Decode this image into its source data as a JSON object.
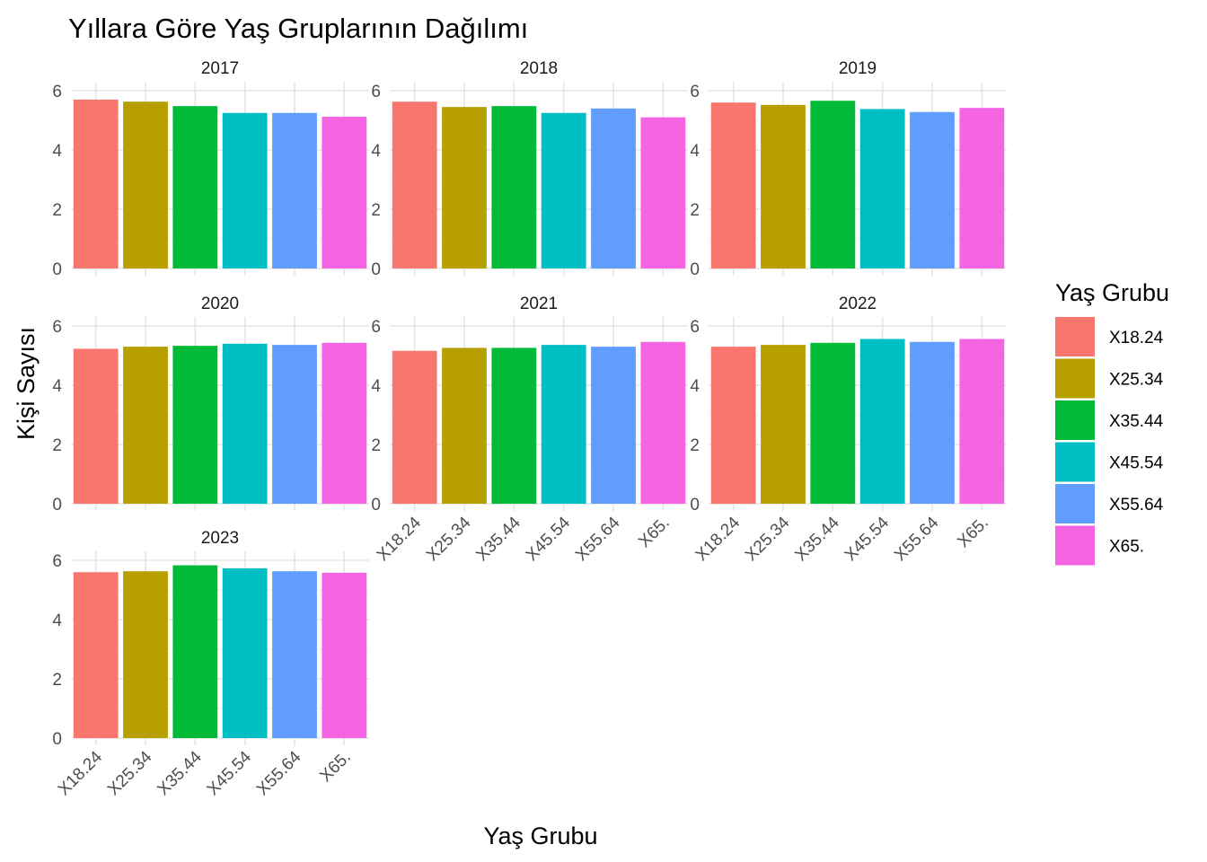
{
  "chart_data": {
    "type": "bar",
    "title": "Yıllara Göre Yaş Gruplarının Dağılımı",
    "xlabel": "Yaş Grubu",
    "ylabel": "Kişi Sayısı",
    "ylim": [
      0,
      6
    ],
    "yticks": [
      0,
      2,
      4,
      6
    ],
    "grid": true,
    "legend": {
      "title": "Yaş Grubu",
      "position": "right"
    },
    "categories": [
      "X18.24",
      "X25.34",
      "X35.44",
      "X45.54",
      "X55.64",
      "X65."
    ],
    "colors": [
      "#F8766D",
      "#B79F00",
      "#00BA38",
      "#00BFC4",
      "#619CFF",
      "#F564E3"
    ],
    "facets": [
      {
        "label": "2017",
        "values": [
          5.7,
          5.63,
          5.48,
          5.25,
          5.25,
          5.12
        ]
      },
      {
        "label": "2018",
        "values": [
          5.63,
          5.45,
          5.48,
          5.25,
          5.4,
          5.1
        ]
      },
      {
        "label": "2019",
        "values": [
          5.6,
          5.52,
          5.66,
          5.38,
          5.28,
          5.42
        ]
      },
      {
        "label": "2020",
        "values": [
          5.23,
          5.3,
          5.33,
          5.4,
          5.36,
          5.43
        ]
      },
      {
        "label": "2021",
        "values": [
          5.16,
          5.26,
          5.26,
          5.36,
          5.3,
          5.46
        ]
      },
      {
        "label": "2022",
        "values": [
          5.3,
          5.36,
          5.43,
          5.56,
          5.46,
          5.56
        ]
      },
      {
        "label": "2023",
        "values": [
          5.6,
          5.63,
          5.83,
          5.73,
          5.63,
          5.58
        ]
      }
    ]
  }
}
